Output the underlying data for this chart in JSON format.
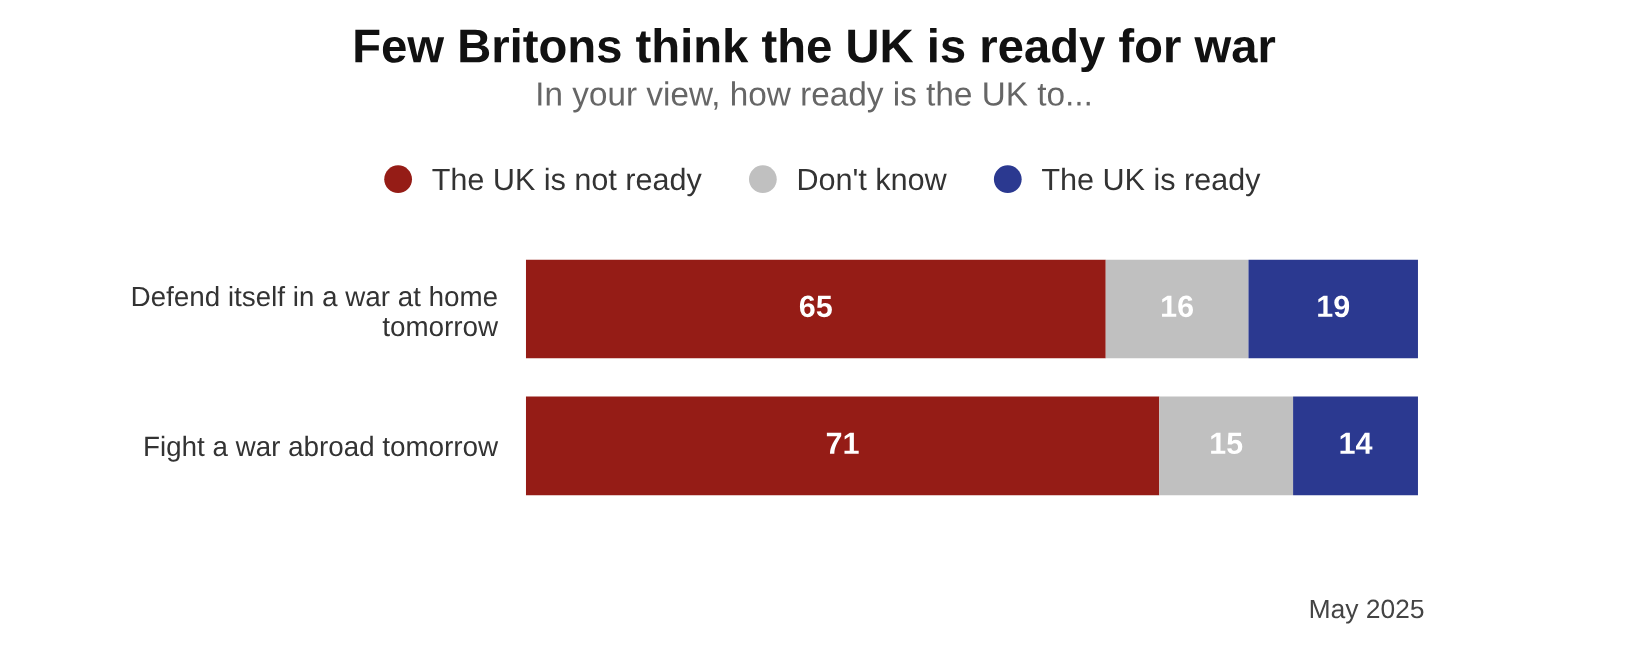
{
  "chart_data": {
    "type": "bar",
    "orientation": "horizontal",
    "stacked": true,
    "title": "Few Britons think the UK is ready for war",
    "subtitle": "In your view, how ready is the UK to...",
    "categories": [
      "Defend itself in a war at home\ntomorrow",
      "Fight a war abroad tomorrow"
    ],
    "series": [
      {
        "name": "The UK is not ready",
        "color": "#951c16",
        "values": [
          65,
          71
        ]
      },
      {
        "name": "Don't know",
        "color": "#c0c0c0",
        "values": [
          16,
          15
        ]
      },
      {
        "name": "The UK is ready",
        "color": "#2b3990",
        "values": [
          19,
          14
        ]
      }
    ],
    "data_labels": true,
    "legend": "top",
    "grid": false,
    "annotations": [
      "May 2025"
    ]
  }
}
